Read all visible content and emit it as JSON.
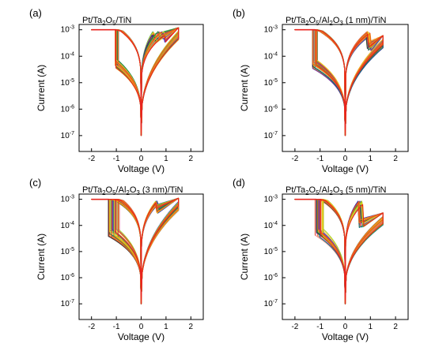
{
  "chart_data": [
    {
      "panel": "(a)",
      "title": "Pt/Ta2O5/TiN",
      "title_parts": {
        "base": "Pt/Ta",
        "sub1": "2",
        "mid": "O",
        "sub2": "5",
        "tail": "/TiN"
      },
      "type": "line",
      "xlabel": "Voltage (V)",
      "ylabel": "Current (A)",
      "xlim": [
        -2.5,
        2.5
      ],
      "ylim_log10": [
        -7.6,
        -2.8
      ],
      "y_scale": "log",
      "xticks": [
        {
          "v": -2,
          "t": "-2"
        },
        {
          "v": -1,
          "t": "-1"
        },
        {
          "v": 0,
          "t": "0"
        },
        {
          "v": 1,
          "t": "1"
        },
        {
          "v": 2,
          "t": "2"
        }
      ],
      "yticks": [
        {
          "e": -3,
          "t": "-3"
        },
        {
          "e": -4,
          "t": "-4"
        },
        {
          "e": -5,
          "t": "-5"
        },
        {
          "e": -6,
          "t": "-6"
        },
        {
          "e": -7,
          "t": "-7"
        }
      ],
      "compliance": {
        "from_v": -2.0,
        "to_v": -1.0,
        "current": 0.001
      },
      "set_voltage_range": [
        -1.05,
        -0.9
      ],
      "reset_voltage_range": [
        0.4,
        0.95
      ],
      "floor_current_at_0V": 1e-07,
      "max_current_at_1_5V": 0.0012,
      "curves": 28
    },
    {
      "panel": "(b)",
      "title": "Pt/Ta2O5/Al2O3 (1 nm)/TiN",
      "title_parts": {
        "base": "Pt/Ta",
        "sub1": "2",
        "mid": "O",
        "sub2": "5",
        "mid2": "/Al",
        "sub3": "2",
        "mid3": "O",
        "sub4": "3",
        "tail": " (1 nm)/TiN"
      },
      "type": "line",
      "xlabel": "Voltage (V)",
      "ylabel": "Current (A)",
      "xlim": [
        -2.5,
        2.5
      ],
      "ylim_log10": [
        -7.6,
        -2.8
      ],
      "y_scale": "log",
      "xticks": [
        {
          "v": -2,
          "t": "-2"
        },
        {
          "v": -1,
          "t": "-1"
        },
        {
          "v": 0,
          "t": "0"
        },
        {
          "v": 1,
          "t": "1"
        },
        {
          "v": 2,
          "t": "2"
        }
      ],
      "yticks": [
        {
          "e": -3,
          "t": "-3"
        },
        {
          "e": -4,
          "t": "-4"
        },
        {
          "e": -5,
          "t": "-5"
        },
        {
          "e": -6,
          "t": "-6"
        },
        {
          "e": -7,
          "t": "-7"
        }
      ],
      "compliance": {
        "from_v": -2.0,
        "to_v": -1.2,
        "current": 0.001
      },
      "set_voltage_range": [
        -1.3,
        -1.1
      ],
      "reset_voltage_range": [
        0.8,
        1.0
      ],
      "floor_current_at_0V": 1e-07,
      "max_current_at_1_5V": 0.0006,
      "curves": 28
    },
    {
      "panel": "(c)",
      "title": "Pt/Ta2O5/Al2O3 (3 nm)/TiN",
      "title_parts": {
        "base": "Pt/Ta",
        "sub1": "2",
        "mid": "O",
        "sub2": "5",
        "mid2": "/Al",
        "sub3": "2",
        "mid3": "O",
        "sub4": "3",
        "tail": " (3 nm)/TiN"
      },
      "type": "line",
      "xlabel": "Voltage (V)",
      "ylabel": "Current (A)",
      "xlim": [
        -2.5,
        2.5
      ],
      "ylim_log10": [
        -7.6,
        -2.8
      ],
      "y_scale": "log",
      "xticks": [
        {
          "v": -2,
          "t": "-2"
        },
        {
          "v": -1,
          "t": "-1"
        },
        {
          "v": 0,
          "t": "0"
        },
        {
          "v": 1,
          "t": "1"
        },
        {
          "v": 2,
          "t": "2"
        }
      ],
      "yticks": [
        {
          "e": -3,
          "t": "-3"
        },
        {
          "e": -4,
          "t": "-4"
        },
        {
          "e": -5,
          "t": "-5"
        },
        {
          "e": -6,
          "t": "-6"
        },
        {
          "e": -7,
          "t": "-7"
        }
      ],
      "compliance": {
        "from_v": -2.0,
        "to_v": -1.3,
        "current": 0.001
      },
      "set_voltage_range": [
        -1.35,
        -0.85
      ],
      "reset_voltage_range": [
        0.55,
        0.65
      ],
      "floor_current_at_0V": 1e-07,
      "max_current_at_1_5V": 0.0011,
      "curves": 28
    },
    {
      "panel": "(d)",
      "title": "Pt/Ta2O5/Al2O3 (5 nm)/TiN",
      "title_parts": {
        "base": "Pt/Ta",
        "sub1": "2",
        "mid": "O",
        "sub2": "5",
        "mid2": "/Al",
        "sub3": "2",
        "mid3": "O",
        "sub4": "3",
        "tail": " (5 nm)/TiN"
      },
      "type": "line",
      "xlabel": "Voltage (V)",
      "ylabel": "Current (A)",
      "xlim": [
        -2.5,
        2.5
      ],
      "ylim_log10": [
        -7.6,
        -2.8
      ],
      "y_scale": "log",
      "xticks": [
        {
          "v": -2,
          "t": "-2"
        },
        {
          "v": -1,
          "t": "-1"
        },
        {
          "v": 0,
          "t": "0"
        },
        {
          "v": 1,
          "t": "1"
        },
        {
          "v": 2,
          "t": "2"
        }
      ],
      "yticks": [
        {
          "e": -3,
          "t": "-3"
        },
        {
          "e": -4,
          "t": "-4"
        },
        {
          "e": -5,
          "t": "-5"
        },
        {
          "e": -6,
          "t": "-6"
        },
        {
          "e": -7,
          "t": "-7"
        }
      ],
      "compliance": {
        "from_v": -2.0,
        "to_v": -1.15,
        "current": 0.001
      },
      "set_voltage_range": [
        -1.2,
        -0.85
      ],
      "reset_voltage_range": [
        0.5,
        0.7
      ],
      "floor_current_at_0V": 1e-07,
      "max_current_at_1_5V": 0.0003,
      "curves": 28
    }
  ],
  "colors": {
    "compliance_line": "#e8231f",
    "palette": [
      "#1c1ab0",
      "#3030d8",
      "#0a6a8a",
      "#188a3a",
      "#5cb82a",
      "#a6cc1c",
      "#e0e020",
      "#f2c018",
      "#f59a16",
      "#f2701a",
      "#ea4a22",
      "#e8231f",
      "#d02a6a",
      "#f2a8c8",
      "#6a2aa8",
      "#2a2a2a"
    ]
  }
}
